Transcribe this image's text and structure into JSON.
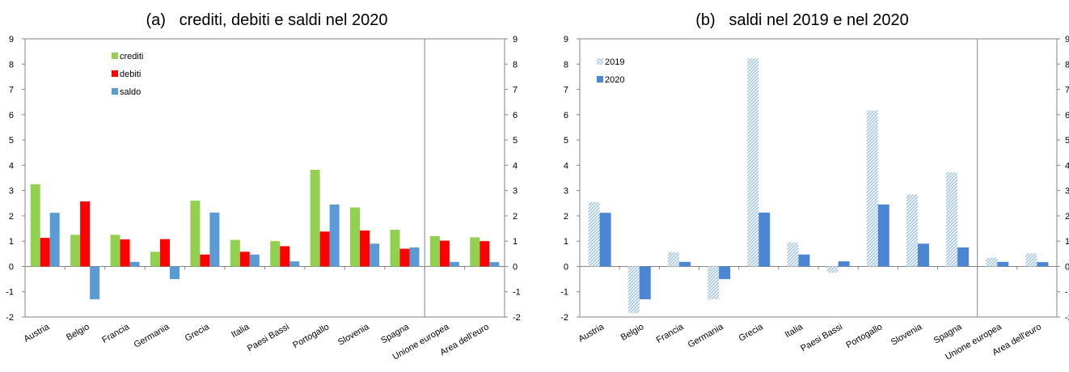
{
  "colors": {
    "crediti": "#92d050",
    "debiti": "#ff0000",
    "saldo": "#5b9bd5",
    "y2020": "#4a86d4",
    "y2019": "#9dc3e6"
  },
  "chart_data": [
    {
      "type": "bar",
      "title": "(a)   crediti, debiti e saldi nel 2020",
      "categories": [
        "Austria",
        "Belgio",
        "Francia",
        "Germania",
        "Grecia",
        "Italia",
        "Paesi Bassi",
        "Portogallo",
        "Slovenia",
        "Spagna",
        "Unione europea",
        "Area dell'euro"
      ],
      "series": [
        {
          "name": "crediti",
          "values": [
            3.25,
            1.25,
            1.25,
            0.58,
            2.6,
            1.05,
            1.0,
            3.82,
            2.33,
            1.45,
            1.2,
            1.15
          ]
        },
        {
          "name": "debiti",
          "values": [
            1.13,
            2.57,
            1.07,
            1.08,
            0.47,
            0.58,
            0.8,
            1.38,
            1.42,
            0.7,
            1.02,
            1.0
          ]
        },
        {
          "name": "saldo",
          "values": [
            2.12,
            -1.3,
            0.18,
            -0.5,
            2.13,
            0.47,
            0.2,
            2.45,
            0.9,
            0.75,
            0.18,
            0.17
          ]
        }
      ],
      "ylim": [
        -2,
        9
      ],
      "yticks": [
        "-2",
        "-1",
        "0",
        "1",
        "2",
        "3",
        "4",
        "5",
        "6",
        "7",
        "8",
        "9"
      ],
      "legend_position": "top-left",
      "grid": false,
      "separator_after_category": 10
    },
    {
      "type": "bar",
      "title": "(b)   saldi nel 2019 e nel 2020",
      "categories": [
        "Austria",
        "Belgio",
        "Francia",
        "Germania",
        "Grecia",
        "Italia",
        "Paesi Bassi",
        "Portogallo",
        "Slovenia",
        "Spagna",
        "Unione europea",
        "Area dell'euro"
      ],
      "series": [
        {
          "name": "2019",
          "values": [
            2.55,
            -1.85,
            0.57,
            -1.3,
            8.23,
            0.95,
            -0.25,
            6.17,
            2.85,
            3.72,
            0.35,
            0.52
          ]
        },
        {
          "name": "2020",
          "values": [
            2.12,
            -1.3,
            0.18,
            -0.5,
            2.13,
            0.47,
            0.2,
            2.45,
            0.9,
            0.75,
            0.18,
            0.17
          ]
        }
      ],
      "ylim": [
        -2,
        9
      ],
      "yticks": [
        "-2",
        "-1",
        "0",
        "1",
        "2",
        "3",
        "4",
        "5",
        "6",
        "7",
        "8",
        "9"
      ],
      "legend_position": "top-left",
      "grid": false,
      "separator_after_category": 10
    }
  ]
}
